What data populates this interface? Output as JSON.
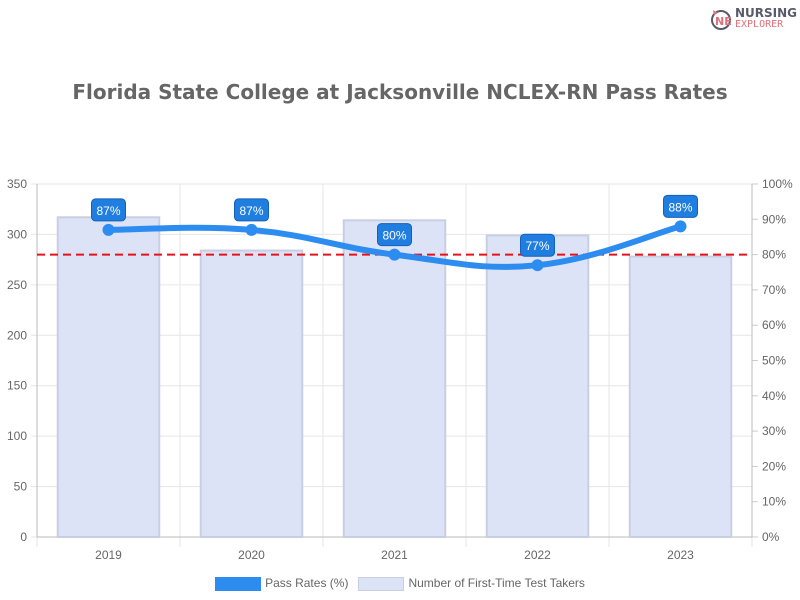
{
  "logo": {
    "line1": "NURSING",
    "line2": "EXPLORER"
  },
  "chart_data": {
    "type": "bar",
    "title": "Florida State College at Jacksonville NCLEX-RN Pass Rates",
    "categories": [
      "2019",
      "2020",
      "2021",
      "2022",
      "2023"
    ],
    "series": [
      {
        "name": "Pass Rates (%)",
        "type": "line",
        "axis": "right",
        "values": [
          87,
          87,
          80,
          77,
          88
        ],
        "labels": [
          "87%",
          "87%",
          "80%",
          "77%",
          "88%"
        ],
        "color": "#2d8cf0"
      },
      {
        "name": "Number of First-Time Test Takers",
        "type": "bar",
        "axis": "left",
        "values": [
          317,
          284,
          314,
          299,
          278
        ],
        "color": "#dde3f6"
      }
    ],
    "y_left": {
      "ylim": [
        0,
        350
      ],
      "ticks": [
        "0",
        "50",
        "100",
        "150",
        "200",
        "250",
        "300",
        "350"
      ]
    },
    "y_right": {
      "ylim": [
        0,
        100
      ],
      "ticks": [
        "0%",
        "10%",
        "20%",
        "30%",
        "40%",
        "50%",
        "60%",
        "70%",
        "80%",
        "90%",
        "100%"
      ]
    },
    "reference_line": {
      "value": 80,
      "axis": "right",
      "color": "#e8101a",
      "style": "dashed"
    },
    "grid": true,
    "legend": "bottom"
  }
}
